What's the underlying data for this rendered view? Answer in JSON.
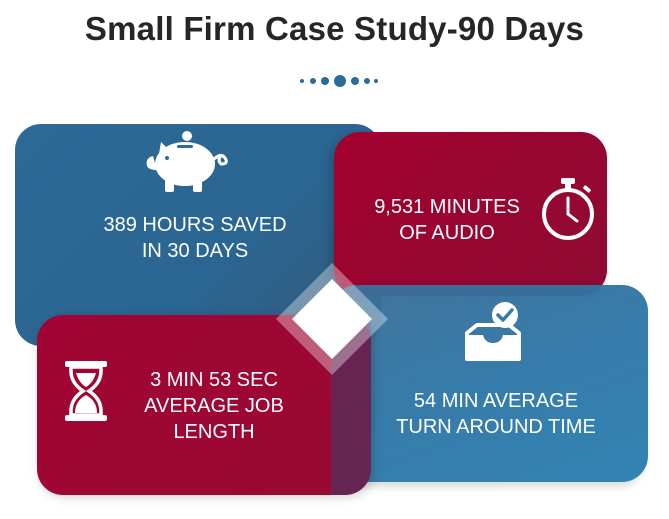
{
  "title": "Small Firm Case Study-90 Days",
  "colors": {
    "title": "#262626",
    "blue": "#2e6a97",
    "red": "#a3002f",
    "dots": "#2b6b98",
    "white": "#ffffff"
  },
  "stats": {
    "hours_saved": "389  HOURS SAVED\nIN 30 DAYS",
    "minutes_audio": "9,531 MINUTES\nOF AUDIO",
    "job_length": "3 MIN 53 SEC\nAVERAGE JOB\nLENGTH",
    "turnaround": "54 MIN AVERAGE\nTURN AROUND TIME"
  },
  "icons": {
    "hours_saved": "piggy-bank-icon",
    "minutes_audio": "stopwatch-icon",
    "job_length": "hourglass-icon",
    "turnaround": "inbox-check-icon",
    "center": "diamond-icon",
    "divider": "dots-divider"
  }
}
